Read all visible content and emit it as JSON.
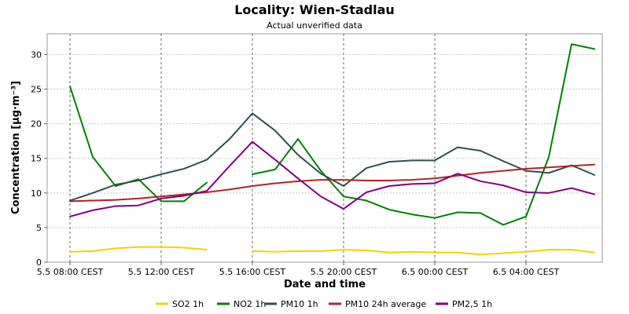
{
  "chart_data": {
    "type": "line",
    "title": "Locality: Wien-Stadlau",
    "subtitle": "Actual unverified data",
    "xlabel": "Date and time",
    "ylabel": "Concentration [µg·m⁻³]",
    "ylim": [
      0,
      33
    ],
    "yticks": [
      0,
      5,
      10,
      15,
      20,
      25,
      30
    ],
    "xlim": [
      0,
      24
    ],
    "xticks": [
      {
        "x": 0,
        "label": "5.5 08:00 CEST"
      },
      {
        "x": 4,
        "label": "5.5 12:00 CEST"
      },
      {
        "x": 8,
        "label": "5.5 16:00 CEST"
      },
      {
        "x": 12,
        "label": "5.5 20:00 CEST"
      },
      {
        "x": 16,
        "label": "6.5 00:00 CEST"
      },
      {
        "x": 20,
        "label": "6.5 04:00 CEST"
      }
    ],
    "grid": true,
    "legend_position": "bottom",
    "series": [
      {
        "name": "SO2 1h",
        "color": "#f5d000",
        "points": [
          [
            0,
            1.5
          ],
          [
            1,
            1.6
          ],
          [
            2,
            2.0
          ],
          [
            3,
            2.2
          ],
          [
            4,
            2.2
          ],
          [
            5,
            2.1
          ],
          [
            6,
            1.8
          ],
          null,
          [
            8,
            1.6
          ],
          [
            9,
            1.5
          ],
          [
            10,
            1.6
          ],
          [
            11,
            1.6
          ],
          [
            12,
            1.8
          ],
          [
            13,
            1.7
          ],
          [
            14,
            1.4
          ],
          [
            15,
            1.5
          ],
          [
            16,
            1.4
          ],
          [
            17,
            1.4
          ],
          [
            18,
            1.1
          ],
          [
            19,
            1.3
          ],
          [
            20,
            1.5
          ],
          [
            21,
            1.8
          ],
          [
            22,
            1.8
          ],
          [
            23,
            1.4
          ]
        ]
      },
      {
        "name": "NO2 1h",
        "color": "#008000",
        "points": [
          [
            0,
            25.4
          ],
          [
            1,
            15.2
          ],
          [
            2,
            11.0
          ],
          [
            3,
            12.0
          ],
          [
            4,
            8.8
          ],
          [
            5,
            8.8
          ],
          [
            6,
            11.5
          ],
          null,
          [
            8,
            12.7
          ],
          [
            9,
            13.4
          ],
          [
            10,
            17.8
          ],
          [
            11,
            13.2
          ],
          [
            12,
            9.5
          ],
          [
            13,
            8.9
          ],
          [
            14,
            7.6
          ],
          [
            15,
            6.9
          ],
          [
            16,
            6.4
          ],
          [
            17,
            7.2
          ],
          [
            18,
            7.1
          ],
          [
            19,
            5.4
          ],
          [
            20,
            6.6
          ],
          [
            21,
            15.2
          ],
          [
            22,
            31.5
          ],
          [
            23,
            30.8
          ]
        ]
      },
      {
        "name": "PM10 1h",
        "color": "#2f4f4f",
        "points": [
          [
            0,
            8.9
          ],
          [
            1,
            10.0
          ],
          [
            2,
            11.2
          ],
          [
            3,
            11.8
          ],
          [
            4,
            12.7
          ],
          [
            5,
            13.5
          ],
          [
            6,
            14.8
          ],
          [
            7,
            17.8
          ],
          [
            8,
            21.5
          ],
          [
            9,
            19.0
          ],
          [
            10,
            15.5
          ],
          [
            11,
            12.8
          ],
          [
            12,
            11.0
          ],
          [
            13,
            13.6
          ],
          [
            14,
            14.5
          ],
          [
            15,
            14.7
          ],
          [
            16,
            14.7
          ],
          [
            17,
            16.6
          ],
          [
            18,
            16.1
          ],
          [
            19,
            14.6
          ],
          [
            20,
            13.2
          ],
          [
            21,
            12.9
          ],
          [
            22,
            14.0
          ],
          [
            23,
            12.6
          ]
        ]
      },
      {
        "name": "PM10 24h average",
        "color": "#b22222",
        "points": [
          [
            0,
            8.8
          ],
          [
            1,
            8.9
          ],
          [
            2,
            9.0
          ],
          [
            3,
            9.2
          ],
          [
            4,
            9.5
          ],
          [
            5,
            9.8
          ],
          [
            6,
            10.1
          ],
          [
            7,
            10.5
          ],
          [
            8,
            11.0
          ],
          [
            9,
            11.4
          ],
          [
            10,
            11.7
          ],
          [
            11,
            11.9
          ],
          [
            12,
            11.9
          ],
          [
            13,
            11.8
          ],
          [
            14,
            11.8
          ],
          [
            15,
            11.9
          ],
          [
            16,
            12.1
          ],
          [
            17,
            12.5
          ],
          [
            18,
            12.9
          ],
          [
            19,
            13.2
          ],
          [
            20,
            13.5
          ],
          [
            21,
            13.7
          ],
          [
            22,
            13.9
          ],
          [
            23,
            14.1
          ]
        ]
      },
      {
        "name": "PM2,5 1h",
        "color": "#800080",
        "points": [
          [
            0,
            6.6
          ],
          [
            1,
            7.5
          ],
          [
            2,
            8.1
          ],
          [
            3,
            8.2
          ],
          [
            4,
            9.2
          ],
          [
            5,
            9.6
          ],
          [
            6,
            10.3
          ],
          [
            7,
            13.9
          ],
          [
            8,
            17.4
          ],
          [
            9,
            14.8
          ],
          [
            10,
            12.1
          ],
          [
            11,
            9.5
          ],
          [
            12,
            7.7
          ],
          [
            13,
            10.1
          ],
          [
            14,
            11.0
          ],
          [
            15,
            11.3
          ],
          [
            16,
            11.4
          ],
          [
            17,
            12.8
          ],
          [
            18,
            11.7
          ],
          [
            19,
            11.1
          ],
          [
            20,
            10.1
          ],
          [
            21,
            10.0
          ],
          [
            22,
            10.7
          ],
          [
            23,
            9.8
          ]
        ]
      }
    ]
  }
}
